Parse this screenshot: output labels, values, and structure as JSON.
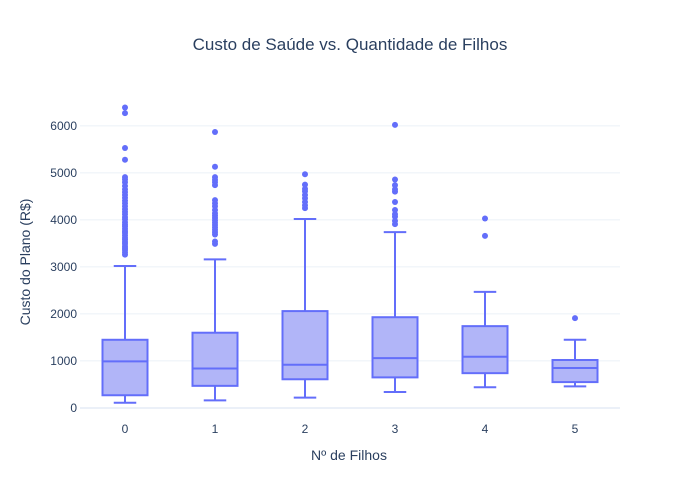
{
  "chart_data": {
    "type": "box",
    "title": "Custo de Saúde vs. Quantidade de Filhos",
    "xlabel": "Nº de Filhos",
    "ylabel": "Custo do Plano (R$)",
    "categories": [
      "0",
      "1",
      "2",
      "3",
      "4",
      "5"
    ],
    "ylim": [
      -150,
      6550
    ],
    "yticks": [
      0,
      1000,
      2000,
      3000,
      4000,
      5000,
      6000
    ],
    "ytick_labels": [
      "0",
      "1000",
      "2000",
      "3000",
      "4000",
      "5000",
      "6000"
    ],
    "grid": true,
    "color": "#636efa",
    "fill_color": "#b1b5f8",
    "boxes": [
      {
        "category": "0",
        "lowerfence": 110,
        "q1": 270,
        "median": 990,
        "q3": 1450,
        "upperfence": 3020,
        "outliers": [
          3260,
          3310,
          3360,
          3400,
          3440,
          3490,
          3530,
          3580,
          3620,
          3670,
          3720,
          3760,
          3810,
          3860,
          3900,
          3950,
          4010,
          4060,
          4120,
          4170,
          4230,
          4290,
          4350,
          4410,
          4470,
          4530,
          4590,
          4650,
          4720,
          4800,
          4860,
          4910,
          5280,
          5530,
          6270,
          6390
        ]
      },
      {
        "category": "1",
        "lowerfence": 160,
        "q1": 470,
        "median": 840,
        "q3": 1600,
        "upperfence": 3160,
        "outliers": [
          3490,
          3540,
          3690,
          3740,
          3790,
          3840,
          3890,
          3940,
          3990,
          4040,
          4090,
          4140,
          4210,
          4290,
          4350,
          4420,
          4740,
          4800,
          4850,
          4910,
          5130,
          5870
        ]
      },
      {
        "category": "2",
        "lowerfence": 220,
        "q1": 610,
        "median": 920,
        "q3": 2060,
        "upperfence": 4020,
        "outliers": [
          4250,
          4310,
          4380,
          4460,
          4530,
          4610,
          4660,
          4750,
          4970
        ]
      },
      {
        "category": "3",
        "lowerfence": 340,
        "q1": 650,
        "median": 1060,
        "q3": 1930,
        "upperfence": 3740,
        "outliers": [
          3910,
          3980,
          4070,
          4120,
          4210,
          4380,
          4600,
          4650,
          4740,
          4860,
          6020
        ]
      },
      {
        "category": "4",
        "lowerfence": 440,
        "q1": 740,
        "median": 1090,
        "q3": 1740,
        "upperfence": 2470,
        "outliers": [
          3660,
          4030
        ]
      },
      {
        "category": "5",
        "lowerfence": 460,
        "q1": 550,
        "median": 850,
        "q3": 1020,
        "upperfence": 1450,
        "outliers": [
          1910
        ]
      }
    ]
  }
}
